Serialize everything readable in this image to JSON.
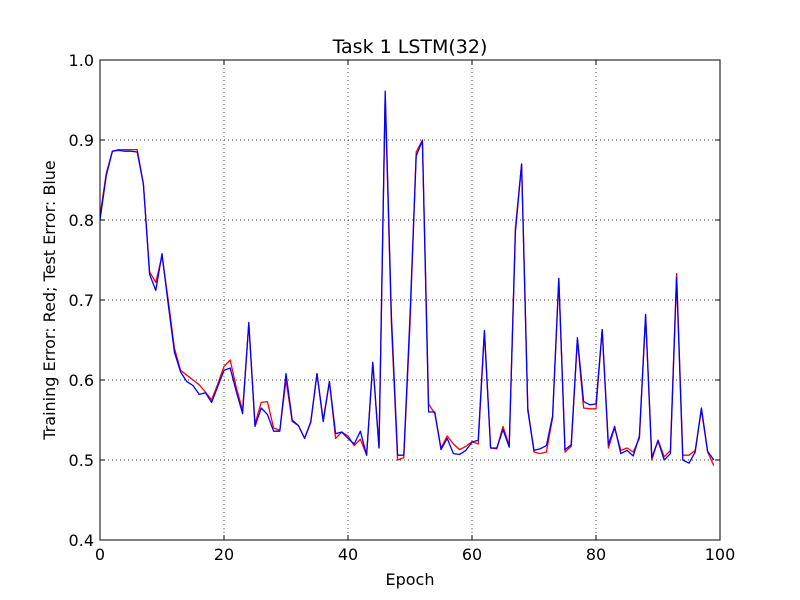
{
  "chart_data": {
    "type": "line",
    "title": "Task 1 LSTM(32)",
    "xlabel": "Epoch",
    "ylabel": "Training Error: Red; Test Error: Blue",
    "xlim": [
      0,
      100
    ],
    "ylim": [
      0.4,
      1.0
    ],
    "xticks": [
      "0",
      "20",
      "40",
      "60",
      "80",
      "100"
    ],
    "yticks": [
      "0.4",
      "0.5",
      "0.6",
      "0.7",
      "0.8",
      "0.9",
      "1.0"
    ],
    "grid": true,
    "colors": {
      "red": "#ff0000",
      "blue": "#0000ff"
    },
    "x": [
      0,
      1,
      2,
      3,
      4,
      5,
      6,
      7,
      8,
      9,
      10,
      11,
      12,
      13,
      14,
      15,
      16,
      17,
      18,
      19,
      20,
      21,
      22,
      23,
      24,
      25,
      26,
      27,
      28,
      29,
      30,
      31,
      32,
      33,
      34,
      35,
      36,
      37,
      38,
      39,
      40,
      41,
      42,
      43,
      44,
      45,
      46,
      47,
      48,
      49,
      50,
      51,
      52,
      53,
      54,
      55,
      56,
      57,
      58,
      59,
      60,
      61,
      62,
      63,
      64,
      65,
      66,
      67,
      68,
      69,
      70,
      71,
      72,
      73,
      74,
      75,
      76,
      77,
      78,
      79,
      80,
      81,
      82,
      83,
      84,
      85,
      86,
      87,
      88,
      89,
      90,
      91,
      92,
      93,
      94,
      95,
      96,
      97,
      98,
      99
    ],
    "series": [
      {
        "color": "red",
        "values": [
          0.805,
          0.858,
          0.886,
          0.888,
          0.888,
          0.888,
          0.888,
          0.845,
          0.735,
          0.722,
          0.755,
          0.7,
          0.64,
          0.612,
          0.606,
          0.6,
          0.594,
          0.585,
          0.575,
          0.595,
          0.617,
          0.625,
          0.59,
          0.562,
          0.67,
          0.545,
          0.572,
          0.573,
          0.54,
          0.537,
          0.6,
          0.548,
          0.543,
          0.527,
          0.547,
          0.608,
          0.55,
          0.598,
          0.527,
          0.535,
          0.53,
          0.518,
          0.526,
          0.506,
          0.622,
          0.515,
          0.955,
          0.67,
          0.5,
          0.503,
          0.67,
          0.885,
          0.9,
          0.57,
          0.558,
          0.515,
          0.53,
          0.52,
          0.513,
          0.517,
          0.523,
          0.52,
          0.66,
          0.515,
          0.514,
          0.542,
          0.518,
          0.79,
          0.87,
          0.565,
          0.51,
          0.508,
          0.51,
          0.553,
          0.726,
          0.51,
          0.517,
          0.65,
          0.565,
          0.564,
          0.564,
          0.663,
          0.515,
          0.54,
          0.512,
          0.515,
          0.51,
          0.527,
          0.68,
          0.5,
          0.525,
          0.504,
          0.512,
          0.733,
          0.506,
          0.506,
          0.512,
          0.563,
          0.51,
          0.493
        ]
      },
      {
        "color": "blue",
        "values": [
          0.8,
          0.855,
          0.886,
          0.887,
          0.886,
          0.886,
          0.885,
          0.845,
          0.732,
          0.712,
          0.758,
          0.695,
          0.635,
          0.61,
          0.598,
          0.593,
          0.582,
          0.584,
          0.572,
          0.592,
          0.612,
          0.615,
          0.585,
          0.558,
          0.672,
          0.542,
          0.565,
          0.557,
          0.536,
          0.536,
          0.608,
          0.55,
          0.543,
          0.527,
          0.548,
          0.608,
          0.548,
          0.598,
          0.533,
          0.535,
          0.527,
          0.52,
          0.536,
          0.506,
          0.622,
          0.515,
          0.961,
          0.68,
          0.506,
          0.506,
          0.68,
          0.88,
          0.899,
          0.56,
          0.56,
          0.513,
          0.527,
          0.508,
          0.507,
          0.512,
          0.522,
          0.525,
          0.662,
          0.515,
          0.515,
          0.538,
          0.516,
          0.785,
          0.87,
          0.562,
          0.512,
          0.514,
          0.518,
          0.555,
          0.727,
          0.513,
          0.519,
          0.653,
          0.573,
          0.569,
          0.57,
          0.663,
          0.519,
          0.542,
          0.508,
          0.512,
          0.505,
          0.53,
          0.682,
          0.503,
          0.524,
          0.5,
          0.508,
          0.728,
          0.5,
          0.496,
          0.51,
          0.565,
          0.511,
          0.5
        ]
      }
    ]
  }
}
